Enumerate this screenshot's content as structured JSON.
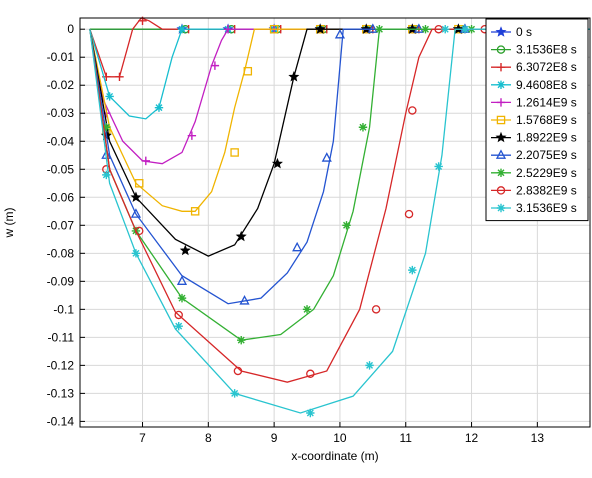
{
  "chart_data": {
    "type": "line",
    "title": "",
    "xlabel": "x-coordinate (m)",
    "ylabel": "w (m)",
    "xlim": [
      6.05,
      13.8
    ],
    "ylim": [
      -0.142,
      0.004
    ],
    "x_ticks": [
      7,
      8,
      9,
      10,
      11,
      12,
      13
    ],
    "y_ticks": [
      0,
      -0.01,
      -0.02,
      -0.03,
      -0.04,
      -0.05,
      -0.06,
      -0.07,
      -0.08,
      -0.09,
      -0.1,
      -0.11,
      -0.12,
      -0.13,
      -0.14
    ],
    "x_tick_labels": [
      "7",
      "8",
      "9",
      "10",
      "11",
      "12",
      "13"
    ],
    "y_tick_labels": [
      "0",
      "-0.01",
      "-0.02",
      "-0.03",
      "-0.04",
      "-0.05",
      "-0.06",
      "-0.07",
      "-0.08",
      "-0.09",
      "-0.1",
      "-0.11",
      "-0.12",
      "-0.13",
      "-0.14"
    ],
    "grid": true,
    "legend_position": "top-right",
    "series": [
      {
        "name": "0 s",
        "color": "#1f3fd8",
        "marker": "star",
        "x": [
          6.2,
          13.8
        ],
        "y": [
          0,
          0
        ],
        "marker_x": [
          7.6,
          8.3,
          9.0,
          9.7,
          10.4,
          11.1,
          11.8
        ],
        "marker_y": [
          0,
          0,
          0,
          0,
          0,
          0,
          0
        ]
      },
      {
        "name": "3.1536E8 s",
        "color": "#2ca02c",
        "marker": "circle",
        "x": [
          6.2,
          13.8
        ],
        "y": [
          0,
          0
        ],
        "marker_x": [
          7.65,
          8.35,
          9.05,
          9.75,
          10.45,
          11.15,
          11.85
        ],
        "marker_y": [
          0,
          0,
          0,
          0,
          0,
          0,
          0
        ]
      },
      {
        "name": "6.3072E8 s",
        "color": "#d62728",
        "marker": "plus",
        "x": [
          6.2,
          6.45,
          6.65,
          6.85,
          6.98,
          7.1,
          7.3,
          13.8
        ],
        "y": [
          0,
          -0.017,
          -0.017,
          0,
          0.004,
          0.003,
          0,
          0
        ],
        "marker_x": [
          6.45,
          6.65,
          7.0,
          7.7,
          8.4,
          9.1,
          9.8,
          10.5,
          11.2,
          11.9
        ],
        "marker_y": [
          -0.017,
          -0.017,
          0.003,
          0,
          0,
          0,
          0,
          0,
          0,
          0
        ]
      },
      {
        "name": "9.4608E8 s",
        "color": "#17becf",
        "marker": "asterisk",
        "x": [
          6.2,
          6.5,
          6.8,
          7.05,
          7.25,
          7.45,
          7.6,
          13.8
        ],
        "y": [
          0,
          -0.024,
          -0.031,
          -0.032,
          -0.028,
          -0.01,
          0,
          0
        ],
        "marker_x": [
          6.5,
          7.25,
          7.6,
          8.3,
          9.0,
          9.7,
          10.4,
          11.1
        ],
        "marker_y": [
          -0.024,
          -0.028,
          0,
          0,
          0,
          0,
          0,
          0
        ]
      },
      {
        "name": "1.2614E9 s",
        "color": "#c21fc2",
        "marker": "plus",
        "x": [
          6.2,
          6.4,
          6.7,
          7.0,
          7.3,
          7.6,
          7.8,
          8.05,
          8.2,
          8.3,
          13.8
        ],
        "y": [
          0,
          -0.025,
          -0.04,
          -0.047,
          -0.048,
          -0.044,
          -0.033,
          -0.013,
          -0.004,
          0,
          0
        ],
        "marker_x": [
          6.45,
          7.05,
          7.75,
          8.1,
          8.3,
          9.0,
          9.7,
          10.4,
          11.1
        ],
        "marker_y": [
          -0.03,
          -0.047,
          -0.038,
          -0.013,
          0,
          0,
          0,
          0,
          0
        ]
      },
      {
        "name": "1.5768E9 s",
        "color": "#f0b400",
        "marker": "square",
        "x": [
          6.2,
          6.5,
          6.9,
          7.3,
          7.6,
          7.8,
          8.05,
          8.25,
          8.4,
          8.55,
          8.7,
          13.8
        ],
        "y": [
          0,
          -0.035,
          -0.055,
          -0.063,
          -0.065,
          -0.065,
          -0.058,
          -0.044,
          -0.028,
          -0.015,
          0,
          0
        ],
        "marker_x": [
          6.45,
          6.95,
          7.8,
          8.4,
          8.6,
          9.0,
          9.7,
          10.4,
          11.1,
          11.8
        ],
        "marker_y": [
          -0.036,
          -0.055,
          -0.065,
          -0.044,
          -0.015,
          0,
          0,
          0,
          0,
          0
        ]
      },
      {
        "name": "1.8922E9 s",
        "color": "#000000",
        "marker": "star",
        "x": [
          6.2,
          6.5,
          6.9,
          7.5,
          8.0,
          8.4,
          8.75,
          9.0,
          9.3,
          9.5,
          13.8
        ],
        "y": [
          0,
          -0.04,
          -0.06,
          -0.075,
          -0.081,
          -0.077,
          -0.064,
          -0.048,
          -0.017,
          0,
          0
        ],
        "marker_x": [
          6.45,
          6.9,
          7.65,
          8.5,
          9.05,
          9.3,
          9.7,
          10.4,
          11.1,
          11.8
        ],
        "marker_y": [
          -0.038,
          -0.06,
          -0.079,
          -0.074,
          -0.048,
          -0.017,
          0,
          0,
          0,
          0
        ]
      },
      {
        "name": "2.2075E9 s",
        "color": "#2454d1",
        "marker": "triangle",
        "x": [
          6.2,
          6.5,
          6.9,
          7.6,
          8.3,
          8.8,
          9.2,
          9.5,
          9.75,
          9.9,
          10.05,
          13.8
        ],
        "y": [
          0,
          -0.045,
          -0.066,
          -0.088,
          -0.098,
          -0.096,
          -0.087,
          -0.076,
          -0.058,
          -0.04,
          0,
          0
        ],
        "marker_x": [
          6.45,
          6.9,
          7.6,
          8.55,
          9.35,
          9.8,
          10.0,
          10.5,
          11.2,
          11.9
        ],
        "marker_y": [
          -0.045,
          -0.066,
          -0.09,
          -0.097,
          -0.078,
          -0.046,
          -0.002,
          0,
          0,
          0
        ]
      },
      {
        "name": "2.5229E9 s",
        "color": "#33b033",
        "marker": "asterisk",
        "x": [
          6.2,
          6.5,
          6.9,
          7.6,
          8.5,
          9.1,
          9.6,
          9.9,
          10.2,
          10.45,
          10.6,
          13.8
        ],
        "y": [
          0,
          -0.05,
          -0.072,
          -0.096,
          -0.111,
          -0.109,
          -0.1,
          -0.088,
          -0.065,
          -0.035,
          0,
          0
        ],
        "marker_x": [
          6.45,
          6.9,
          7.6,
          8.5,
          9.5,
          10.1,
          10.35,
          10.6,
          11.3,
          12.0
        ],
        "marker_y": [
          -0.035,
          -0.072,
          -0.096,
          -0.111,
          -0.1,
          -0.07,
          -0.035,
          0,
          0,
          0
        ]
      },
      {
        "name": "2.8382E9 s",
        "color": "#d62728",
        "marker": "circle",
        "x": [
          6.2,
          6.5,
          6.9,
          7.5,
          8.5,
          9.2,
          9.8,
          10.3,
          10.7,
          11.0,
          11.2,
          11.4,
          13.8
        ],
        "y": [
          0,
          -0.05,
          -0.072,
          -0.101,
          -0.122,
          -0.126,
          -0.122,
          -0.1,
          -0.064,
          -0.03,
          -0.01,
          0,
          0
        ],
        "marker_x": [
          6.45,
          6.95,
          7.55,
          8.45,
          9.55,
          10.55,
          11.05,
          11.1,
          11.5,
          12.2
        ],
        "marker_y": [
          -0.05,
          -0.072,
          -0.102,
          -0.122,
          -0.123,
          -0.1,
          -0.066,
          -0.029,
          0,
          0
        ]
      },
      {
        "name": "3.1536E9 s",
        "color": "#29c4cf",
        "marker": "asterisk",
        "x": [
          6.2,
          6.5,
          6.9,
          7.5,
          8.4,
          9.4,
          10.2,
          10.8,
          11.3,
          11.55,
          11.75,
          13.8
        ],
        "y": [
          0,
          -0.055,
          -0.08,
          -0.107,
          -0.13,
          -0.137,
          -0.131,
          -0.115,
          -0.08,
          -0.045,
          0,
          0
        ],
        "marker_x": [
          6.45,
          6.9,
          7.55,
          8.4,
          9.55,
          10.45,
          11.1,
          11.5,
          11.6,
          11.9,
          12.6
        ],
        "marker_y": [
          -0.052,
          -0.08,
          -0.106,
          -0.13,
          -0.137,
          -0.12,
          -0.086,
          -0.049,
          0.0,
          0,
          0
        ]
      }
    ]
  }
}
